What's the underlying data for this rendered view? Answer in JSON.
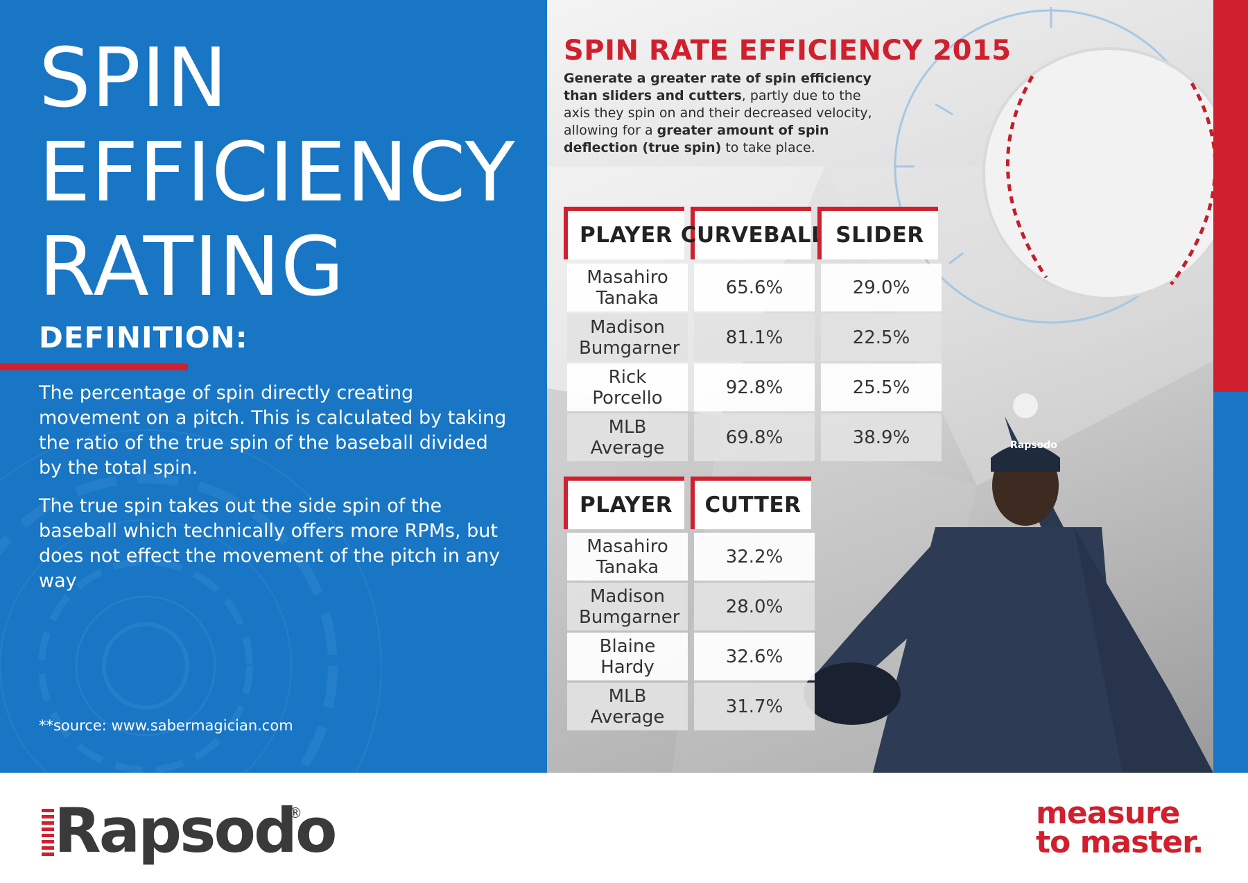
{
  "colors": {
    "blue": "#1876c4",
    "red": "#d0202e",
    "dark_text": "#333333"
  },
  "left": {
    "title_lines": [
      "SPIN",
      "EFFICIENCY",
      "RATING"
    ],
    "definition_heading": "DEFINITION:",
    "paragraphs": [
      "The percentage of spin directly creating movement on a pitch. This is calculated by taking the ratio of the true spin of the baseball divided by the total spin.",
      "The true spin takes out the side spin of the baseball which technically offers more RPMs, but does not effect the movement of the pitch in any way"
    ],
    "source": "**source: www.sabermagician.com"
  },
  "right": {
    "title": "SPIN RATE EFFICIENCY 2015",
    "desc": {
      "bold1": "Generate a greater rate of spin efficiency than sliders and cutters",
      "text1": ", partly due to the axis they spin on and their decreased velocity, allowing for a ",
      "bold2": "greater amount of spin deflection (true spin)",
      "text2": " to take place."
    },
    "table1": {
      "headers": [
        "PLAYER",
        "CURVEBALL",
        "SLIDER"
      ],
      "rows": [
        {
          "player": "Masahiro Tanaka",
          "curveball": "65.6%",
          "slider": "29.0%"
        },
        {
          "player": "Madison Bumgarner",
          "curveball": "81.1%",
          "slider": "22.5%"
        },
        {
          "player": "Rick Porcello",
          "curveball": "92.8%",
          "slider": "25.5%"
        },
        {
          "player": "MLB Average",
          "curveball": "69.8%",
          "slider": "38.9%"
        }
      ]
    },
    "table2": {
      "headers": [
        "PLAYER",
        "CUTTER"
      ],
      "rows": [
        {
          "player": "Masahiro Tanaka",
          "cutter": "32.2%"
        },
        {
          "player": "Madison Bumgarner",
          "cutter": "28.0%"
        },
        {
          "player": "Blaine Hardy",
          "cutter": "32.6%"
        },
        {
          "player": "MLB Average",
          "cutter": "31.7%"
        }
      ]
    },
    "cap_logo": "Rapsodo"
  },
  "footer": {
    "logo": "Rapsodo",
    "registered": "®",
    "tagline_line1": "measure",
    "tagline_line2": "to master."
  }
}
